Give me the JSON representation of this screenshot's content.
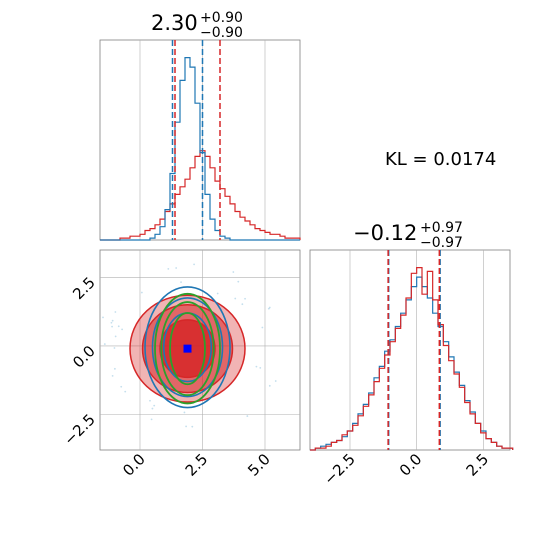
{
  "colors": {
    "red": "#d62728",
    "blue": "#1f77b4",
    "green": "#2ca02c",
    "grid": "#b0b0b0",
    "marker": "#0000ff"
  },
  "chart_data": {
    "type": "corner",
    "kl_label": "KL = 0.0174",
    "params": [
      {
        "title_main": "2.30",
        "title_sup": "+0.90",
        "title_sub": "−0.90",
        "xlim": [
          -1.6,
          6.4
        ],
        "ticks": [
          0.0,
          2.5,
          5.0
        ],
        "tick_labels": [
          "0.0",
          "2.5",
          "5.0"
        ],
        "quantiles_red": [
          1.4,
          3.2
        ],
        "quantiles_blue": [
          1.3,
          2.5
        ]
      },
      {
        "title_main": "−0.12",
        "title_sup": "+0.97",
        "title_sub": "−0.97",
        "xlim": [
          -4.0,
          3.5
        ],
        "ticks": [
          -2.5,
          0.0,
          2.5
        ],
        "tick_labels": [
          "−2.5",
          "0.0",
          "2.5"
        ],
        "quantiles_red": [
          -1.07,
          0.85
        ],
        "quantiles_blue": [
          -1.05,
          0.88
        ]
      }
    ],
    "y_axis_2d": {
      "ylim": [
        -3.8,
        3.5
      ],
      "ticks": [
        -2.5,
        0.0,
        2.5
      ],
      "tick_labels": [
        "−2.5",
        "0.0",
        "2.5"
      ]
    },
    "hist_top": {
      "bins": [
        -1.6,
        -1.4,
        -1.2,
        -1.0,
        -0.8,
        -0.6,
        -0.4,
        -0.2,
        0.0,
        0.2,
        0.4,
        0.6,
        0.8,
        1.0,
        1.2,
        1.4,
        1.6,
        1.8,
        2.0,
        2.2,
        2.4,
        2.6,
        2.8,
        3.0,
        3.2,
        3.4,
        3.6,
        3.8,
        4.0,
        4.2,
        4.4,
        4.6,
        4.8,
        5.0,
        5.2,
        5.4,
        5.6,
        5.8,
        6.0,
        6.2
      ],
      "blue": [
        0,
        0,
        0,
        0,
        0,
        0,
        0,
        0,
        0,
        0,
        0.01,
        0.03,
        0.07,
        0.16,
        0.35,
        0.62,
        0.84,
        0.96,
        0.91,
        0.72,
        0.46,
        0.24,
        0.11,
        0.05,
        0.02,
        0.01,
        0,
        0,
        0,
        0,
        0,
        0,
        0,
        0,
        0,
        0,
        0,
        0,
        0,
        0
      ],
      "red": [
        0,
        0,
        0,
        0,
        0.01,
        0.01,
        0.02,
        0.02,
        0.03,
        0.05,
        0.06,
        0.08,
        0.11,
        0.15,
        0.19,
        0.24,
        0.28,
        0.32,
        0.38,
        0.44,
        0.47,
        0.44,
        0.38,
        0.31,
        0.27,
        0.23,
        0.19,
        0.15,
        0.12,
        0.1,
        0.08,
        0.06,
        0.05,
        0.04,
        0.03,
        0.03,
        0.02,
        0.01,
        0.01,
        0.01
      ]
    },
    "hist_right": {
      "bins": [
        -4.0,
        -3.8,
        -3.6,
        -3.4,
        -3.2,
        -3.0,
        -2.8,
        -2.6,
        -2.4,
        -2.2,
        -2.0,
        -1.8,
        -1.6,
        -1.4,
        -1.2,
        -1.0,
        -0.8,
        -0.6,
        -0.4,
        -0.2,
        0.0,
        0.2,
        0.4,
        0.6,
        0.8,
        1.0,
        1.2,
        1.4,
        1.6,
        1.8,
        2.0,
        2.2,
        2.4,
        2.6,
        2.8,
        3.0,
        3.2,
        3.4
      ],
      "blue": [
        0,
        0.01,
        0.02,
        0.03,
        0.04,
        0.05,
        0.07,
        0.1,
        0.14,
        0.19,
        0.24,
        0.3,
        0.38,
        0.44,
        0.52,
        0.58,
        0.65,
        0.72,
        0.79,
        0.86,
        0.91,
        0.86,
        0.8,
        0.72,
        0.65,
        0.57,
        0.49,
        0.41,
        0.34,
        0.26,
        0.2,
        0.14,
        0.1,
        0.06,
        0.04,
        0.02,
        0.01,
        0.01
      ],
      "red": [
        0,
        0.01,
        0.01,
        0.02,
        0.04,
        0.05,
        0.08,
        0.1,
        0.13,
        0.18,
        0.23,
        0.29,
        0.36,
        0.43,
        0.5,
        0.57,
        0.64,
        0.71,
        0.8,
        0.93,
        0.96,
        0.82,
        0.94,
        0.79,
        0.66,
        0.55,
        0.47,
        0.4,
        0.33,
        0.25,
        0.19,
        0.14,
        0.09,
        0.06,
        0.04,
        0.02,
        0.01,
        0.01
      ]
    },
    "contours": {
      "center_red": [
        1.9,
        -0.1
      ],
      "center_blue": [
        1.9,
        -0.05
      ],
      "center_green": [
        1.9,
        -0.1
      ],
      "red_levels": [
        [
          1.1,
          1.05
        ],
        [
          1.8,
          1.6
        ],
        [
          2.3,
          1.95
        ]
      ],
      "blue_levels": [
        [
          0.95,
          1.25
        ],
        [
          1.4,
          1.8
        ],
        [
          1.7,
          2.2
        ]
      ],
      "green_levels": [
        [
          0.7,
          1.3
        ],
        [
          1.05,
          1.7
        ],
        [
          1.3,
          2.0
        ]
      ],
      "marker": [
        1.9,
        -0.1
      ]
    }
  }
}
